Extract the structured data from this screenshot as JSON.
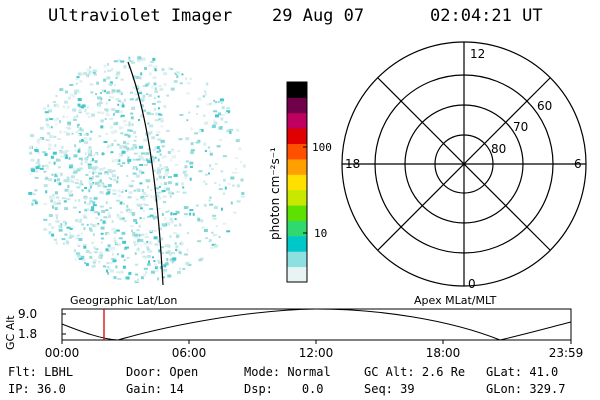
{
  "header": {
    "title": "Ultraviolet Imager",
    "date": "29 Aug 07",
    "time": "02:04:21 UT"
  },
  "colorbar": {
    "label": "photon cm⁻²s⁻¹",
    "ticks": [
      "100",
      "10"
    ]
  },
  "polar_plot": {
    "mlt_labels": [
      "12",
      "18",
      "6",
      "0"
    ],
    "lat_labels": [
      "60",
      "70",
      "80"
    ]
  },
  "orbit_panel": {
    "left_label": "Geographic Lat/Lon",
    "right_label": "Apex MLat/MLT",
    "ylabel": "GC Alt",
    "yticks": [
      "9.0",
      "1.8"
    ],
    "xticks": [
      "00:00",
      "06:00",
      "12:00",
      "18:00",
      "23:59"
    ]
  },
  "status": {
    "row1": [
      {
        "label": "Flt:",
        "value": "LBHL"
      },
      {
        "label": "Door:",
        "value": "Open"
      },
      {
        "label": "Mode:",
        "value": "Normal"
      },
      {
        "label": "GC Alt:",
        "value": "2.6 Re"
      },
      {
        "label": "GLat:",
        "value": "41.0"
      }
    ],
    "row2": [
      {
        "label": "IP:",
        "value": "36.0"
      },
      {
        "label": "Gain:",
        "value": "14"
      },
      {
        "label": "Dsp:",
        "value": "0.0"
      },
      {
        "label": "Seq:",
        "value": "39"
      },
      {
        "label": "GLon:",
        "value": "329.7"
      }
    ]
  },
  "colors": {
    "orbit_marker": "#d40000",
    "colorscale": [
      "#e8f4f4",
      "#8ee0e0",
      "#00c8c8",
      "#30d870",
      "#5ee000",
      "#c8e800",
      "#ffe000",
      "#ffa000",
      "#ff5000",
      "#e00000",
      "#c00060",
      "#70004a",
      "#000000"
    ]
  }
}
